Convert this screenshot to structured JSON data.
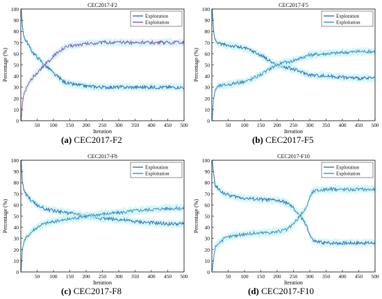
{
  "chart_data": [
    {
      "type": "line",
      "panel_label": "(a)",
      "caption": "CEC2017-F2",
      "title": "CEC2017-F2",
      "xlabel": "Iteration",
      "ylabel": "Percentage (%)",
      "xlim": [
        0,
        500
      ],
      "ylim": [
        0,
        100
      ],
      "xticks": [
        50,
        100,
        150,
        200,
        250,
        300,
        350,
        400,
        450,
        500
      ],
      "yticks": [
        0,
        10,
        20,
        30,
        40,
        50,
        60,
        70,
        80,
        90,
        100
      ],
      "grid": false,
      "legend": "top-right",
      "x": [
        1,
        5,
        10,
        20,
        30,
        40,
        50,
        60,
        70,
        80,
        90,
        100,
        110,
        120,
        130,
        140,
        150,
        175,
        200,
        250,
        300,
        350,
        400,
        450,
        500
      ],
      "series": [
        {
          "name": "Exploration",
          "color": "#2f6fb3",
          "values": [
            100,
            85,
            74,
            70,
            64,
            60,
            57,
            54,
            51,
            48,
            46,
            42,
            40,
            38,
            35,
            34,
            33,
            32,
            31,
            30,
            30,
            30,
            30,
            30,
            30
          ]
        },
        {
          "name": "Exploitation",
          "color": "#8a4fb8",
          "values": [
            0,
            15,
            26,
            30,
            36,
            40,
            43,
            46,
            49,
            52,
            54,
            58,
            60,
            62,
            65,
            66,
            67,
            68,
            69,
            70,
            70,
            70,
            70,
            70,
            70
          ]
        }
      ]
    },
    {
      "type": "line",
      "panel_label": "(b)",
      "caption": "CEC2017-F5",
      "title": "CEC2017-F5",
      "xlabel": "Iteration",
      "ylabel": "Percentage (%)",
      "xlim": [
        0,
        500
      ],
      "ylim": [
        0,
        100
      ],
      "xticks": [
        50,
        100,
        150,
        200,
        250,
        300,
        350,
        400,
        450,
        500
      ],
      "yticks": [
        0,
        10,
        20,
        30,
        40,
        50,
        60,
        70,
        80,
        90,
        100
      ],
      "grid": false,
      "legend": "top-right",
      "x": [
        1,
        5,
        10,
        20,
        40,
        60,
        80,
        100,
        120,
        140,
        160,
        180,
        200,
        220,
        240,
        260,
        280,
        300,
        350,
        400,
        450,
        500
      ],
      "series": [
        {
          "name": "Exploration",
          "color": "#2f6fb3",
          "values": [
            100,
            82,
            72,
            69,
            68,
            67,
            66,
            65,
            63,
            60,
            57,
            53,
            50,
            48,
            47,
            45,
            43,
            41,
            40,
            39,
            38,
            38
          ]
        },
        {
          "name": "Exploitation",
          "color": "#3d8cc4",
          "values": [
            0,
            18,
            28,
            31,
            32,
            33,
            34,
            35,
            37,
            40,
            43,
            47,
            50,
            52,
            53,
            55,
            57,
            59,
            60,
            61,
            62,
            62
          ]
        }
      ]
    },
    {
      "type": "line",
      "panel_label": "(c)",
      "caption": "CEC2017-F8",
      "title": "CEC2017-F8",
      "xlabel": "Iteration",
      "ylabel": "Percentage (%)",
      "xlim": [
        0,
        500
      ],
      "ylim": [
        0,
        100
      ],
      "xticks": [
        50,
        100,
        150,
        200,
        250,
        300,
        350,
        400,
        450,
        500
      ],
      "yticks": [
        0,
        10,
        20,
        30,
        40,
        50,
        60,
        70,
        80,
        90,
        100
      ],
      "grid": false,
      "legend": "top-right",
      "x": [
        1,
        5,
        10,
        20,
        40,
        60,
        80,
        100,
        120,
        140,
        160,
        180,
        200,
        250,
        300,
        350,
        400,
        450,
        500
      ],
      "series": [
        {
          "name": "Exploration",
          "color": "#2f6fb3",
          "values": [
            100,
            80,
            72,
            68,
            62,
            58,
            56,
            55,
            54,
            53,
            52,
            51,
            50,
            48,
            47,
            45,
            44,
            43,
            43
          ]
        },
        {
          "name": "Exploitation",
          "color": "#3d8cc4",
          "values": [
            0,
            20,
            28,
            32,
            38,
            42,
            44,
            45,
            46,
            47,
            48,
            49,
            50,
            52,
            53,
            55,
            56,
            57,
            57
          ]
        }
      ]
    },
    {
      "type": "line",
      "panel_label": "(d)",
      "caption": "CEC2017-F10",
      "title": "CEC2017-F10",
      "xlabel": "Iteration",
      "ylabel": "Percentage (%)",
      "xlim": [
        0,
        500
      ],
      "ylim": [
        0,
        100
      ],
      "xticks": [
        50,
        100,
        150,
        200,
        250,
        300,
        350,
        400,
        450,
        500
      ],
      "yticks": [
        0,
        10,
        20,
        30,
        40,
        50,
        60,
        70,
        80,
        90,
        100
      ],
      "grid": false,
      "legend": "top-right",
      "x": [
        1,
        5,
        10,
        20,
        40,
        60,
        80,
        100,
        150,
        200,
        230,
        250,
        270,
        290,
        300,
        310,
        320,
        350,
        400,
        450,
        500
      ],
      "series": [
        {
          "name": "Exploration",
          "color": "#2f6fb3",
          "values": [
            100,
            88,
            78,
            74,
            70,
            68,
            67,
            66,
            65,
            64,
            62,
            57,
            50,
            42,
            33,
            28,
            27,
            26,
            26,
            26,
            26
          ]
        },
        {
          "name": "Exploitation",
          "color": "#3d8cc4",
          "values": [
            0,
            12,
            22,
            26,
            30,
            32,
            33,
            34,
            35,
            36,
            38,
            43,
            50,
            58,
            67,
            72,
            73,
            74,
            74,
            74,
            74
          ]
        }
      ]
    }
  ]
}
